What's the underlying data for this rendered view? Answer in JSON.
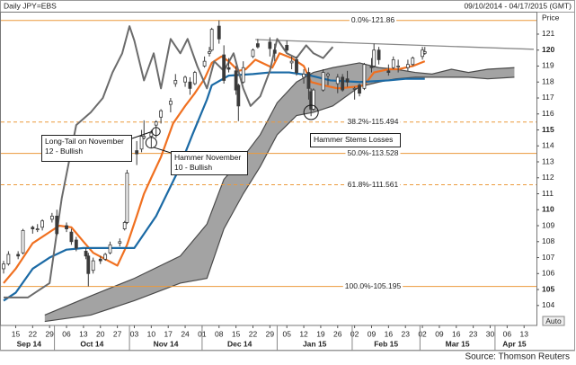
{
  "chart_data": {
    "type": "candlestick",
    "title": "Daily JPY=EBS",
    "date_range": "09/10/2014 - 04/17/2015 (GMT)",
    "y_label": "Price",
    "scale_mode": "Auto",
    "source": "Source: Thomson Reuters",
    "xlim": [
      "2014-09-10",
      "2015-04-17"
    ],
    "xticks": [
      {
        "value": "2014-09-15",
        "label": "15"
      },
      {
        "value": "2014-09-22",
        "label": "22"
      },
      {
        "value": "2014-09-29",
        "label": "29"
      },
      {
        "value": "2014-10-06",
        "label": "06"
      },
      {
        "value": "2014-10-13",
        "label": "13"
      },
      {
        "value": "2014-10-20",
        "label": "20"
      },
      {
        "value": "2014-10-27",
        "label": "27"
      },
      {
        "value": "2014-11-03",
        "label": "03"
      },
      {
        "value": "2014-11-10",
        "label": "10"
      },
      {
        "value": "2014-11-17",
        "label": "17"
      },
      {
        "value": "2014-11-24",
        "label": "24"
      },
      {
        "value": "2014-12-01",
        "label": "01"
      },
      {
        "value": "2014-12-08",
        "label": "08"
      },
      {
        "value": "2014-12-15",
        "label": "15"
      },
      {
        "value": "2014-12-22",
        "label": "22"
      },
      {
        "value": "2014-12-29",
        "label": "29"
      },
      {
        "value": "2015-01-05",
        "label": "05"
      },
      {
        "value": "2015-01-12",
        "label": "12"
      },
      {
        "value": "2015-01-19",
        "label": "19"
      },
      {
        "value": "2015-01-26",
        "label": "26"
      },
      {
        "value": "2015-02-02",
        "label": "02"
      },
      {
        "value": "2015-02-09",
        "label": "09"
      },
      {
        "value": "2015-02-16",
        "label": "16"
      },
      {
        "value": "2015-02-23",
        "label": "23"
      },
      {
        "value": "2015-03-02",
        "label": "02"
      },
      {
        "value": "2015-03-09",
        "label": "09"
      },
      {
        "value": "2015-03-16",
        "label": "16"
      },
      {
        "value": "2015-03-23",
        "label": "23"
      },
      {
        "value": "2015-03-30",
        "label": "30"
      },
      {
        "value": "2015-04-06",
        "label": "06"
      },
      {
        "value": "2015-04-13",
        "label": "13"
      }
    ],
    "xmonths": [
      {
        "value": "2014-09-01",
        "label": "Sep 14"
      },
      {
        "value": "2014-10-01",
        "label": "Oct 14"
      },
      {
        "value": "2014-11-01",
        "label": "Nov 14"
      },
      {
        "value": "2014-12-01",
        "label": "Dec 14"
      },
      {
        "value": "2015-01-01",
        "label": "Jan 15"
      },
      {
        "value": "2015-02-01",
        "label": "Feb 15"
      },
      {
        "value": "2015-03-01",
        "label": "Mar 15"
      },
      {
        "value": "2015-04-01",
        "label": "Apr 15"
      }
    ],
    "ylim": [
      102.75,
      122.35
    ],
    "yticks": [
      104,
      105,
      106,
      107,
      108,
      109,
      110,
      111,
      112,
      113,
      114,
      115,
      116,
      117,
      118,
      119,
      120,
      121
    ],
    "candles": {
      "color": "#3a3a3a",
      "x": [
        "2014-09-10",
        "2014-09-12",
        "2014-09-16",
        "2014-09-18",
        "2014-09-22",
        "2014-09-24",
        "2014-09-26",
        "2014-09-30",
        "2014-10-02",
        "2014-10-06",
        "2014-10-08",
        "2014-10-10",
        "2014-10-14",
        "2014-10-15",
        "2014-10-17",
        "2014-10-20",
        "2014-10-22",
        "2014-10-24",
        "2014-10-28",
        "2014-10-30",
        "2014-10-31",
        "2014-11-04",
        "2014-11-06",
        "2014-11-07",
        "2014-11-10",
        "2014-11-12",
        "2014-11-14",
        "2014-11-18",
        "2014-11-20",
        "2014-11-24",
        "2014-11-26",
        "2014-11-28",
        "2014-12-02",
        "2014-12-04",
        "2014-12-05",
        "2014-12-08",
        "2014-12-10",
        "2014-12-12",
        "2014-12-15",
        "2014-12-16",
        "2014-12-18",
        "2014-12-22",
        "2014-12-24",
        "2014-12-29",
        "2014-12-31",
        "2015-01-05",
        "2015-01-07",
        "2015-01-09",
        "2015-01-12",
        "2015-01-14",
        "2015-01-15",
        "2015-01-16",
        "2015-01-20",
        "2015-01-22",
        "2015-01-26",
        "2015-01-28",
        "2015-01-30",
        "2015-02-02",
        "2015-02-04",
        "2015-02-06",
        "2015-02-09",
        "2015-02-10",
        "2015-02-12",
        "2015-02-16",
        "2015-02-18",
        "2015-02-20",
        "2015-02-24",
        "2015-02-26",
        "2015-03-02",
        "2015-03-03"
      ],
      "open": [
        106.3,
        106.6,
        107.2,
        107.3,
        108.9,
        108.8,
        108.9,
        109.4,
        109.6,
        109.0,
        108.6,
        108.1,
        107.4,
        107.1,
        106.2,
        106.9,
        106.9,
        107.3,
        107.9,
        108.8,
        109.2,
        113.7,
        113.8,
        114.5,
        114.6,
        115.3,
        115.8,
        116.6,
        117.9,
        118.0,
        118.0,
        117.9,
        119.0,
        119.8,
        120.0,
        121.5,
        119.7,
        118.9,
        118.7,
        117.8,
        118.0,
        119.6,
        120.4,
        120.5,
        120.0,
        120.3,
        119.2,
        119.4,
        118.3,
        118.6,
        117.4,
        116.3,
        117.5,
        118.4,
        117.9,
        118.3,
        118.2,
        117.6,
        117.8,
        117.6,
        119.0,
        119.0,
        120.0,
        118.7,
        118.9,
        119.0,
        118.9,
        119.1,
        119.6,
        119.8
      ],
      "high": [
        106.8,
        107.4,
        107.4,
        108.8,
        109.0,
        109.1,
        109.4,
        109.8,
        110.0,
        109.2,
        108.8,
        108.3,
        107.6,
        107.3,
        107.0,
        107.1,
        107.3,
        108.0,
        108.2,
        109.3,
        112.5,
        114.3,
        115.0,
        115.6,
        115.0,
        115.6,
        116.3,
        117.0,
        118.5,
        118.4,
        118.3,
        118.7,
        119.6,
        120.2,
        121.4,
        121.86,
        120.3,
        119.5,
        119.0,
        117.9,
        119.3,
        120.1,
        120.7,
        120.8,
        120.4,
        120.6,
        119.6,
        119.6,
        118.8,
        118.9,
        117.6,
        117.6,
        118.8,
        118.6,
        118.5,
        118.5,
        118.7,
        117.7,
        117.9,
        119.2,
        119.5,
        120.4,
        120.2,
        119.1,
        119.6,
        119.4,
        119.4,
        119.6,
        120.2,
        120.2
      ],
      "low": [
        106.0,
        106.5,
        106.9,
        107.2,
        108.5,
        108.6,
        108.7,
        109.2,
        108.4,
        108.6,
        107.8,
        107.4,
        106.9,
        105.2,
        106.0,
        106.6,
        106.8,
        107.2,
        107.7,
        108.7,
        109.1,
        112.8,
        113.6,
        114.4,
        113.9,
        114.5,
        115.4,
        116.1,
        117.7,
        117.7,
        117.2,
        117.8,
        118.9,
        119.6,
        119.9,
        120.4,
        117.9,
        118.6,
        117.2,
        115.55,
        117.9,
        119.5,
        120.1,
        119.6,
        119.3,
        119.9,
        118.8,
        118.4,
        117.9,
        116.9,
        115.86,
        116.2,
        117.4,
        117.8,
        117.3,
        117.4,
        117.7,
        116.9,
        117.1,
        117.5,
        118.6,
        118.9,
        119.1,
        118.4,
        118.8,
        118.6,
        118.7,
        119.0,
        119.4,
        119.7
      ],
      "close": [
        106.6,
        107.2,
        107.1,
        108.7,
        108.8,
        108.8,
        109.3,
        109.6,
        108.5,
        108.8,
        108.0,
        107.6,
        107.1,
        106.0,
        106.8,
        106.8,
        107.2,
        107.8,
        108.0,
        109.2,
        112.3,
        113.5,
        114.6,
        114.6,
        114.8,
        115.5,
        116.2,
        116.8,
        118.1,
        118.3,
        117.6,
        118.6,
        119.3,
        119.9,
        121.3,
        120.7,
        118.1,
        118.8,
        117.5,
        116.5,
        118.9,
        120.0,
        120.2,
        120.1,
        119.8,
        120.0,
        119.3,
        118.6,
        118.5,
        117.6,
        116.3,
        117.5,
        118.6,
        118.5,
        118.3,
        117.5,
        118.0,
        117.6,
        117.3,
        119.1,
        118.9,
        120.0,
        119.4,
        118.6,
        119.4,
        119.0,
        119.1,
        119.5,
        120.0,
        119.9
      ]
    },
    "series": [
      {
        "color": "#f07020",
        "x": [
          "2014-09-10",
          "2014-09-15",
          "2014-09-22",
          "2014-09-29",
          "2014-10-03",
          "2014-10-08",
          "2014-10-13",
          "2014-10-17",
          "2014-10-22",
          "2014-10-27",
          "2014-10-31",
          "2014-11-04",
          "2014-11-07",
          "2014-11-10",
          "2014-11-14",
          "2014-11-19",
          "2014-11-24",
          "2014-11-28",
          "2014-12-02",
          "2014-12-05",
          "2014-12-09",
          "2014-12-12",
          "2014-12-16",
          "2014-12-19",
          "2014-12-23",
          "2014-12-30",
          "2015-01-02",
          "2015-01-07",
          "2015-01-12",
          "2015-01-15",
          "2015-01-20",
          "2015-01-26",
          "2015-02-02",
          "2015-02-06",
          "2015-02-10",
          "2015-02-16",
          "2015-02-20",
          "2015-02-26",
          "2015-03-03"
        ],
        "values": [
          105.4,
          106.3,
          107.9,
          108.6,
          109.0,
          108.9,
          108.0,
          107.3,
          106.9,
          106.5,
          107.8,
          109.6,
          111.0,
          112.0,
          113.3,
          115.4,
          116.5,
          117.3,
          118.2,
          119.2,
          119.6,
          119.3,
          118.7,
          118.8,
          119.4,
          118.9,
          119.8,
          119.5,
          119.0,
          118.0,
          117.8,
          117.6,
          117.7,
          117.8,
          118.6,
          118.8,
          118.8,
          119.0,
          119.3
        ]
      },
      {
        "color": "#1b6aa5",
        "x": [
          "2014-09-10",
          "2014-09-15",
          "2014-09-22",
          "2014-09-29",
          "2014-10-06",
          "2014-10-13",
          "2014-11-03",
          "2014-11-12",
          "2014-11-21",
          "2014-11-27",
          "2014-12-03",
          "2014-12-05",
          "2014-12-12",
          "2014-12-22",
          "2014-12-29",
          "2015-01-06",
          "2015-01-15",
          "2015-01-23",
          "2015-02-04",
          "2015-02-16",
          "2015-02-23",
          "2015-03-03"
        ],
        "values": [
          104.3,
          104.8,
          106.3,
          107.0,
          107.5,
          107.6,
          107.6,
          109.6,
          112.4,
          114.7,
          116.9,
          117.8,
          118.4,
          118.5,
          118.6,
          118.6,
          118.4,
          118.1,
          118.0,
          118.1,
          118.2,
          118.2
        ]
      },
      {
        "color": "#6b6b6b",
        "x": [
          "2014-09-10",
          "2014-09-20",
          "2014-09-29",
          "2014-10-04",
          "2014-10-10",
          "2014-10-16",
          "2014-10-21",
          "2014-10-25",
          "2014-10-29",
          "2014-11-01",
          "2014-11-03",
          "2014-11-07",
          "2014-11-11",
          "2014-11-14",
          "2014-11-18",
          "2014-11-22",
          "2014-11-25",
          "2014-11-29",
          "2014-12-03",
          "2014-12-06",
          "2014-12-10",
          "2014-12-14",
          "2014-12-18",
          "2014-12-21",
          "2014-12-25",
          "2014-12-29",
          "2015-01-01",
          "2015-01-05",
          "2015-01-09",
          "2015-01-13",
          "2015-01-16",
          "2015-01-20",
          "2015-01-24"
        ],
        "values": [
          104.5,
          104.5,
          105.4,
          110.7,
          115.3,
          116.1,
          117.0,
          118.6,
          119.8,
          121.5,
          120.6,
          118.1,
          119.8,
          117.6,
          120.7,
          119.8,
          120.7,
          119.0,
          117.6,
          119.3,
          118.7,
          119.8,
          117.6,
          116.5,
          117.1,
          118.7,
          120.7,
          119.8,
          119.5,
          120.3,
          119.8,
          119.5,
          120.2
        ]
      }
    ],
    "cloud": {
      "color": "#a3a3a3",
      "edge_color": "#4a4a4a",
      "x": [
        "2014-09-27",
        "2014-10-16",
        "2014-11-03",
        "2014-11-22",
        "2014-12-03",
        "2014-12-10",
        "2014-12-18",
        "2014-12-25",
        "2015-01-01",
        "2015-01-09",
        "2015-01-16",
        "2015-01-24",
        "2015-02-04",
        "2015-02-12",
        "2015-02-19",
        "2015-02-27",
        "2015-03-06",
        "2015-03-14",
        "2015-03-21",
        "2015-03-29",
        "2015-04-09"
      ],
      "span_a": [
        103.4,
        104.6,
        105.7,
        107.1,
        109.1,
        111.9,
        113.3,
        114.7,
        116.7,
        118.0,
        118.6,
        118.9,
        119.2,
        118.9,
        118.8,
        118.6,
        118.5,
        118.8,
        118.6,
        118.8,
        118.9
      ],
      "span_b": [
        103.0,
        103.4,
        104.3,
        105.4,
        105.7,
        108.8,
        111.0,
        112.7,
        114.7,
        115.9,
        116.1,
        116.5,
        117.7,
        118.0,
        118.2,
        118.3,
        118.3,
        118.3,
        118.3,
        118.2,
        118.3
      ]
    },
    "trendline": {
      "color": "#8a8a8a",
      "x": [
        "2014-12-23",
        "2015-04-17"
      ],
      "values": [
        120.66,
        120.05
      ]
    },
    "fibonacci": {
      "color": "#eb9a3c",
      "levels": [
        {
          "value": 121.86,
          "label": "0.0%-121.86"
        },
        {
          "value": 115.494,
          "label": "38.2%-115.494"
        },
        {
          "value": 113.528,
          "label": "50.0%-113.528"
        },
        {
          "value": 111.561,
          "label": "61.8%-111.561"
        },
        {
          "value": 105.195,
          "label": "100.0%-105.195"
        }
      ],
      "styles": [
        "solid",
        "dashed",
        "solid",
        "dashed",
        "solid"
      ]
    },
    "annotations": [
      {
        "text": "Long-Tail on November 12 - Bullish",
        "x": "2014-11-12",
        "y": 114.9
      },
      {
        "text": "Hammer November 10 - Bullish",
        "x": "2014-11-10",
        "y": 114.2
      },
      {
        "text": "Hammer Stems Losses",
        "x": "2015-01-15",
        "y": 116.1
      }
    ]
  }
}
